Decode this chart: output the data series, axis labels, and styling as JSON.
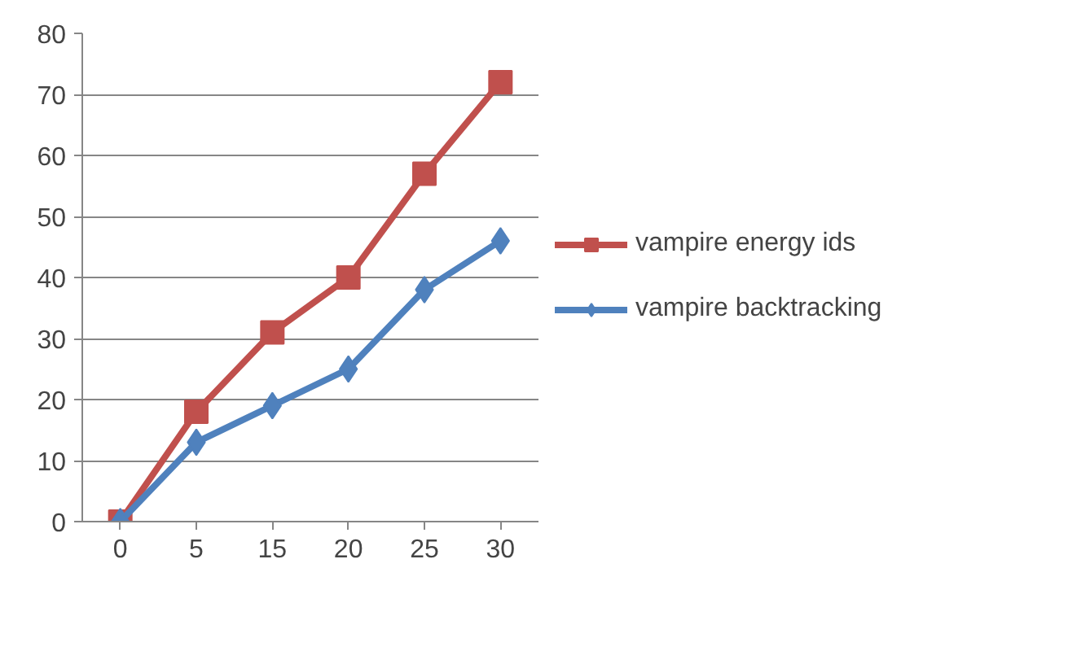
{
  "chart_data": {
    "type": "line",
    "categories": [
      "0",
      "5",
      "15",
      "20",
      "25",
      "30"
    ],
    "series": [
      {
        "name": "vampire energy ids",
        "color": "#c0504d",
        "marker": "square",
        "values": [
          0,
          18,
          31,
          40,
          57,
          72
        ]
      },
      {
        "name": "vampire backtracking",
        "color": "#4f81bd",
        "marker": "diamond",
        "values": [
          0,
          13,
          19,
          25,
          38,
          46
        ]
      }
    ],
    "ylim": [
      0,
      80
    ],
    "yticks": [
      0,
      10,
      20,
      30,
      40,
      50,
      60,
      70,
      80
    ],
    "grid": "y",
    "legend": "right",
    "line_style": "solid"
  }
}
